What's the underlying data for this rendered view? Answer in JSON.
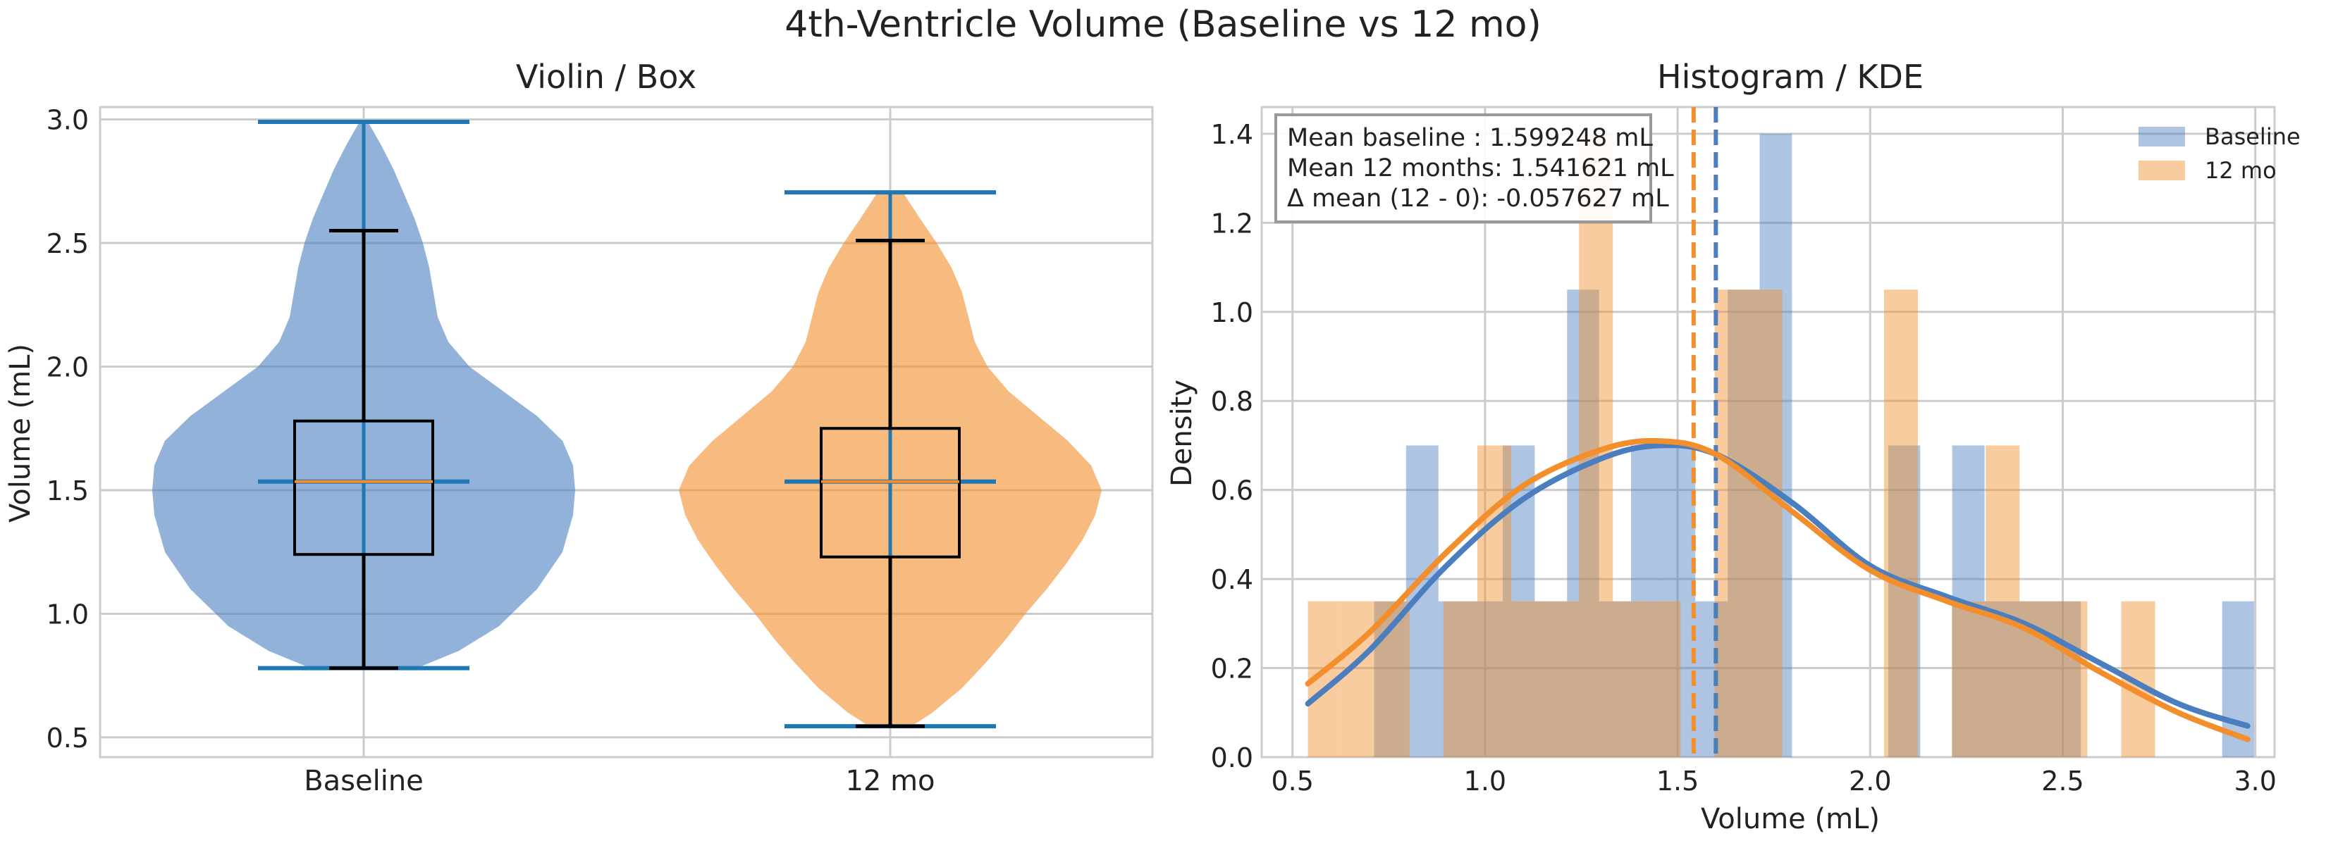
{
  "suptitle": "4th-Ventricle Volume (Baseline vs 12 mo)",
  "colors": {
    "baseline": "#4a7ebf",
    "twelve": "#f28e2b",
    "box_whisker": "#000000",
    "violin_lines": "#1f77b4",
    "grid": "#cccccc",
    "axis_frame": "#cccccc"
  },
  "chart_data": [
    {
      "type": "violin",
      "title": "Violin / Box",
      "xlabel": "",
      "ylabel": "Volume (mL)",
      "ylim": [
        0.42,
        3.05
      ],
      "yticks": [
        0.5,
        1.0,
        1.5,
        2.0,
        2.5,
        3.0
      ],
      "ytick_labels": [
        "0.5",
        "1.0",
        "1.5",
        "2.0",
        "2.5",
        "3.0"
      ],
      "categories": [
        "Baseline",
        "12 mo"
      ],
      "grid": true,
      "series": [
        {
          "category": "Baseline",
          "violin": {
            "min": 0.78,
            "max": 2.99,
            "median": 1.535
          },
          "box": {
            "q1": 1.24,
            "median": 1.535,
            "q3": 1.78,
            "whisker_low": 0.78,
            "whisker_high": 2.55
          },
          "density_profile": [
            [
              0.78,
              0.25
            ],
            [
              0.85,
              0.45
            ],
            [
              0.95,
              0.64
            ],
            [
              1.1,
              0.82
            ],
            [
              1.25,
              0.94
            ],
            [
              1.4,
              0.99
            ],
            [
              1.5,
              1.0
            ],
            [
              1.6,
              0.99
            ],
            [
              1.7,
              0.94
            ],
            [
              1.8,
              0.82
            ],
            [
              1.9,
              0.66
            ],
            [
              2.0,
              0.5
            ],
            [
              2.1,
              0.4
            ],
            [
              2.2,
              0.35
            ],
            [
              2.3,
              0.33
            ],
            [
              2.4,
              0.31
            ],
            [
              2.5,
              0.28
            ],
            [
              2.6,
              0.24
            ],
            [
              2.7,
              0.19
            ],
            [
              2.8,
              0.14
            ],
            [
              2.9,
              0.08
            ],
            [
              2.99,
              0.02
            ]
          ]
        },
        {
          "category": "12 mo",
          "violin": {
            "min": 0.545,
            "max": 2.705,
            "median": 1.535
          },
          "box": {
            "q1": 1.23,
            "median": 1.535,
            "q3": 1.75,
            "whisker_low": 0.545,
            "whisker_high": 2.51
          },
          "density_profile": [
            [
              0.545,
              0.1
            ],
            [
              0.6,
              0.2
            ],
            [
              0.7,
              0.34
            ],
            [
              0.8,
              0.45
            ],
            [
              0.9,
              0.55
            ],
            [
              1.0,
              0.64
            ],
            [
              1.1,
              0.74
            ],
            [
              1.2,
              0.83
            ],
            [
              1.3,
              0.91
            ],
            [
              1.4,
              0.97
            ],
            [
              1.5,
              1.0
            ],
            [
              1.6,
              0.95
            ],
            [
              1.7,
              0.84
            ],
            [
              1.8,
              0.7
            ],
            [
              1.9,
              0.56
            ],
            [
              2.0,
              0.46
            ],
            [
              2.1,
              0.4
            ],
            [
              2.2,
              0.37
            ],
            [
              2.3,
              0.34
            ],
            [
              2.4,
              0.29
            ],
            [
              2.5,
              0.22
            ],
            [
              2.6,
              0.14
            ],
            [
              2.705,
              0.06
            ]
          ]
        }
      ]
    },
    {
      "type": "histogram",
      "title": "Histogram / KDE",
      "xlabel": "Volume (mL)",
      "ylabel": "Density",
      "xlim": [
        0.42,
        3.05
      ],
      "ylim": [
        0,
        1.46
      ],
      "xticks": [
        0.5,
        1.0,
        1.5,
        2.0,
        2.5,
        3.0
      ],
      "xtick_labels": [
        "0.5",
        "1.0",
        "1.5",
        "2.0",
        "2.5",
        "3.0"
      ],
      "yticks": [
        0.0,
        0.2,
        0.4,
        0.6,
        0.8,
        1.0,
        1.2,
        1.4
      ],
      "ytick_labels": [
        "0.0",
        "0.2",
        "0.4",
        "0.6",
        "0.8",
        "1.0",
        "1.2",
        "1.4"
      ],
      "grid": true,
      "legend_position": "top-right",
      "annotation": [
        "Mean baseline : 1.599248 mL",
        "Mean 12 months: 1.541621 mL",
        "Δ mean (12 - 0): -0.057627 mL"
      ],
      "series": [
        {
          "name": "Baseline",
          "color": "#4a7ebf",
          "bins": [
            [
              0.712,
              0.795,
              0.35
            ],
            [
              0.795,
              0.879,
              0.7
            ],
            [
              0.879,
              0.962,
              0.35
            ],
            [
              0.962,
              1.046,
              0.35
            ],
            [
              1.046,
              1.129,
              0.7
            ],
            [
              1.129,
              1.213,
              0.35
            ],
            [
              1.213,
              1.296,
              1.05
            ],
            [
              1.296,
              1.379,
              0.35
            ],
            [
              1.379,
              1.463,
              0.7
            ],
            [
              1.463,
              1.546,
              0.7
            ],
            [
              1.546,
              1.63,
              0.35
            ],
            [
              1.63,
              1.713,
              1.05
            ],
            [
              1.713,
              1.797,
              1.4
            ],
            [
              2.047,
              2.13,
              0.7
            ],
            [
              2.213,
              2.297,
              0.7
            ],
            [
              2.297,
              2.38,
              0.35
            ],
            [
              2.38,
              2.464,
              0.35
            ],
            [
              2.464,
              2.547,
              0.35
            ],
            [
              2.914,
              2.997,
              0.35
            ]
          ],
          "mean": 1.599248,
          "kde": [
            [
              0.54,
              0.12
            ],
            [
              0.7,
              0.24
            ],
            [
              0.9,
              0.43
            ],
            [
              1.1,
              0.58
            ],
            [
              1.3,
              0.67
            ],
            [
              1.45,
              0.7
            ],
            [
              1.6,
              0.68
            ],
            [
              1.8,
              0.57
            ],
            [
              2.0,
              0.43
            ],
            [
              2.2,
              0.36
            ],
            [
              2.4,
              0.3
            ],
            [
              2.6,
              0.21
            ],
            [
              2.8,
              0.12
            ],
            [
              2.98,
              0.07
            ]
          ]
        },
        {
          "name": "12 mo",
          "color": "#f28e2b",
          "bins": [
            [
              0.54,
              0.628,
              0.35
            ],
            [
              0.628,
              0.716,
              0.35
            ],
            [
              0.716,
              0.804,
              0.35
            ],
            [
              0.892,
              0.98,
              0.35
            ],
            [
              0.98,
              1.068,
              0.7
            ],
            [
              1.068,
              1.156,
              0.35
            ],
            [
              1.156,
              1.244,
              0.35
            ],
            [
              1.244,
              1.332,
              1.4
            ],
            [
              1.332,
              1.42,
              0.35
            ],
            [
              1.42,
              1.508,
              0.35
            ],
            [
              1.596,
              1.684,
              1.05
            ],
            [
              1.684,
              1.772,
              1.05
            ],
            [
              2.036,
              2.124,
              1.05
            ],
            [
              2.212,
              2.3,
              0.35
            ],
            [
              2.3,
              2.388,
              0.7
            ],
            [
              2.388,
              2.476,
              0.35
            ],
            [
              2.476,
              2.564,
              0.35
            ],
            [
              2.652,
              2.74,
              0.35
            ]
          ],
          "mean": 1.541621,
          "kde": [
            [
              0.54,
              0.165
            ],
            [
              0.7,
              0.28
            ],
            [
              0.9,
              0.46
            ],
            [
              1.1,
              0.61
            ],
            [
              1.3,
              0.69
            ],
            [
              1.45,
              0.71
            ],
            [
              1.6,
              0.68
            ],
            [
              1.8,
              0.55
            ],
            [
              2.0,
              0.42
            ],
            [
              2.2,
              0.35
            ],
            [
              2.4,
              0.29
            ],
            [
              2.6,
              0.19
            ],
            [
              2.8,
              0.1
            ],
            [
              2.98,
              0.04
            ]
          ]
        }
      ]
    }
  ]
}
